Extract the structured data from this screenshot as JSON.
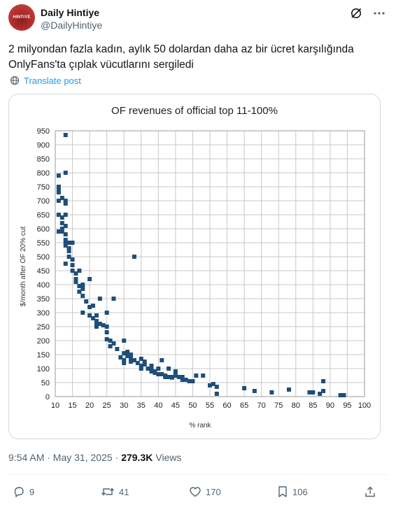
{
  "author": {
    "display_name": "Daily Hintiye",
    "handle": "@DailyHintiye",
    "avatar_text": "HINTIYE"
  },
  "post": {
    "text": "2 milyondan fazla kadın, aylık 50 dolardan daha az bir ücret karşılığında OnlyFans'ta çıplak vücutlarını sergiledi",
    "translate_label": "Translate post",
    "time": "9:54 AM · May 31, 2025 ·",
    "views_count": "279.3K",
    "views_label": "Views"
  },
  "actions": {
    "replies": "9",
    "reposts": "41",
    "likes": "170",
    "bookmarks": "106"
  },
  "icons": [
    "grok-icon",
    "more-icon",
    "globe-icon",
    "reply-icon",
    "repost-icon",
    "like-icon",
    "bookmark-icon",
    "share-icon"
  ],
  "colors": {
    "accent": "#1d9bf0",
    "marker": "#1f4e79",
    "muted": "#536471"
  },
  "chart_data": {
    "type": "scatter",
    "title": "OF revenues of official top 11-100%",
    "xlabel": "% rank",
    "ylabel": "$/month after OF 20% cut",
    "xlim": [
      10,
      100
    ],
    "ylim": [
      0,
      950
    ],
    "xticks": [
      10,
      15,
      20,
      25,
      30,
      35,
      40,
      45,
      50,
      55,
      60,
      65,
      70,
      75,
      80,
      85,
      90,
      95,
      100
    ],
    "yticks": [
      0,
      50,
      100,
      150,
      200,
      250,
      300,
      350,
      400,
      450,
      500,
      550,
      600,
      650,
      700,
      750,
      800,
      850,
      900,
      950
    ],
    "grid": true,
    "legend": "none",
    "points": [
      [
        11,
        790
      ],
      [
        11,
        750
      ],
      [
        11,
        740
      ],
      [
        11,
        730
      ],
      [
        11,
        700
      ],
      [
        11,
        650
      ],
      [
        11,
        590
      ],
      [
        12,
        710
      ],
      [
        12,
        640
      ],
      [
        12,
        620
      ],
      [
        12,
        600
      ],
      [
        12,
        590
      ],
      [
        13,
        935
      ],
      [
        13,
        800
      ],
      [
        13,
        700
      ],
      [
        13,
        690
      ],
      [
        13,
        650
      ],
      [
        13,
        610
      ],
      [
        13,
        580
      ],
      [
        13,
        560
      ],
      [
        13,
        550
      ],
      [
        13,
        540
      ],
      [
        13,
        475
      ],
      [
        14,
        550
      ],
      [
        14,
        530
      ],
      [
        14,
        520
      ],
      [
        14,
        500
      ],
      [
        15,
        550
      ],
      [
        15,
        490
      ],
      [
        15,
        470
      ],
      [
        15,
        450
      ],
      [
        16,
        440
      ],
      [
        16,
        420
      ],
      [
        16,
        410
      ],
      [
        17,
        450
      ],
      [
        17,
        395
      ],
      [
        17,
        375
      ],
      [
        18,
        400
      ],
      [
        18,
        385
      ],
      [
        18,
        360
      ],
      [
        18,
        300
      ],
      [
        19,
        340
      ],
      [
        20,
        420
      ],
      [
        20,
        320
      ],
      [
        20,
        290
      ],
      [
        21,
        325
      ],
      [
        21,
        280
      ],
      [
        22,
        290
      ],
      [
        22,
        270
      ],
      [
        22,
        255
      ],
      [
        22,
        250
      ],
      [
        23,
        350
      ],
      [
        23,
        260
      ],
      [
        24,
        255
      ],
      [
        25,
        300
      ],
      [
        25,
        250
      ],
      [
        25,
        230
      ],
      [
        25,
        205
      ],
      [
        26,
        200
      ],
      [
        26,
        180
      ],
      [
        27,
        350
      ],
      [
        27,
        190
      ],
      [
        28,
        170
      ],
      [
        29,
        140
      ],
      [
        30,
        200
      ],
      [
        30,
        155
      ],
      [
        30,
        130
      ],
      [
        30,
        120
      ],
      [
        31,
        160
      ],
      [
        31,
        150
      ],
      [
        31,
        145
      ],
      [
        32,
        150
      ],
      [
        32,
        140
      ],
      [
        32,
        130
      ],
      [
        32,
        125
      ],
      [
        33,
        500
      ],
      [
        33,
        130
      ],
      [
        34,
        120
      ],
      [
        35,
        135
      ],
      [
        35,
        110
      ],
      [
        35,
        100
      ],
      [
        36,
        125
      ],
      [
        36,
        115
      ],
      [
        37,
        100
      ],
      [
        38,
        110
      ],
      [
        38,
        95
      ],
      [
        38,
        90
      ],
      [
        39,
        90
      ],
      [
        39,
        85
      ],
      [
        40,
        100
      ],
      [
        40,
        80
      ],
      [
        41,
        130
      ],
      [
        41,
        80
      ],
      [
        42,
        75
      ],
      [
        42,
        70
      ],
      [
        43,
        100
      ],
      [
        43,
        70
      ],
      [
        44,
        70
      ],
      [
        44,
        68
      ],
      [
        45,
        90
      ],
      [
        45,
        75
      ],
      [
        46,
        70
      ],
      [
        47,
        70
      ],
      [
        47,
        60
      ],
      [
        48,
        60
      ],
      [
        49,
        55
      ],
      [
        50,
        55
      ],
      [
        51,
        75
      ],
      [
        53,
        75
      ],
      [
        55,
        40
      ],
      [
        56,
        45
      ],
      [
        57,
        35
      ],
      [
        57,
        10
      ],
      [
        65,
        30
      ],
      [
        68,
        20
      ],
      [
        73,
        15
      ],
      [
        78,
        25
      ],
      [
        84,
        15
      ],
      [
        85,
        15
      ],
      [
        87,
        10
      ],
      [
        88,
        55
      ],
      [
        88,
        20
      ],
      [
        93,
        5
      ],
      [
        94,
        5
      ]
    ]
  }
}
